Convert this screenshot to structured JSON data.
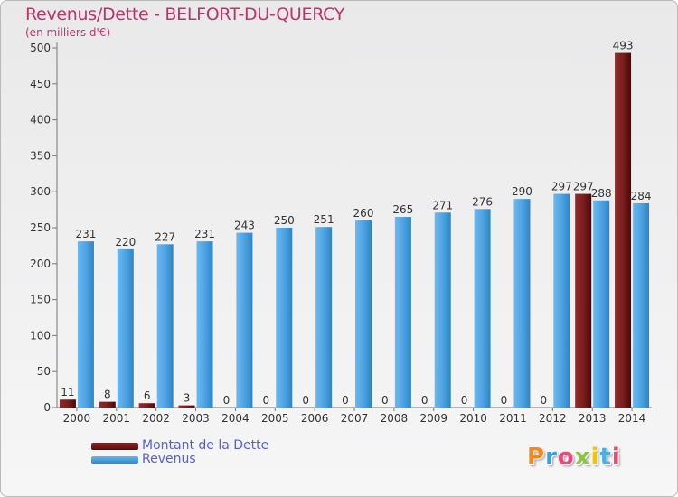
{
  "title": "Revenus/Dette - BELFORT-DU-QUERCY",
  "subtitle": "(en milliers d'€)",
  "legend": {
    "debt_label": "Montant de la Dette",
    "revenue_label": "Revenus"
  },
  "logo": {
    "letters": [
      "P",
      "r",
      "o",
      "x",
      "i",
      "t",
      "i"
    ],
    "colors": [
      "#f08a1c",
      "#3aa0d8",
      "#e94a7c",
      "#8bc53f",
      "#f5c400",
      "#4bb0e0",
      "#e94a7c"
    ]
  },
  "colors": {
    "debt": "#6b1414",
    "revenue": "#3d94d6",
    "title": "#c0336a",
    "legend_text": "#5560d8"
  },
  "chart_data": {
    "type": "bar",
    "categories": [
      "2000",
      "2001",
      "2002",
      "2003",
      "2004",
      "2005",
      "2006",
      "2007",
      "2008",
      "2009",
      "2010",
      "2011",
      "2012",
      "2013",
      "2014"
    ],
    "series": [
      {
        "name": "Montant de la Dette",
        "values": [
          11,
          8,
          6,
          3,
          0,
          0,
          0,
          0,
          0,
          0,
          0,
          0,
          0,
          297,
          493
        ]
      },
      {
        "name": "Revenus",
        "values": [
          231,
          220,
          227,
          231,
          243,
          250,
          251,
          260,
          265,
          271,
          276,
          290,
          297,
          288,
          284
        ]
      }
    ],
    "yticks": [
      0,
      50,
      100,
      150,
      200,
      250,
      300,
      350,
      400,
      450,
      500
    ],
    "ylim": [
      0,
      500
    ],
    "grid": false,
    "legend_position": "bottom-left"
  }
}
